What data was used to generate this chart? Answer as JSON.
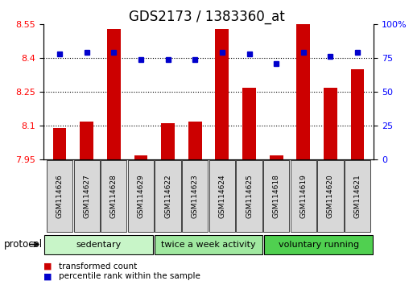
{
  "title": "GDS2173 / 1383360_at",
  "samples": [
    "GSM114626",
    "GSM114627",
    "GSM114628",
    "GSM114629",
    "GSM114622",
    "GSM114623",
    "GSM114624",
    "GSM114625",
    "GSM114618",
    "GSM114619",
    "GSM114620",
    "GSM114621"
  ],
  "transformed_count": [
    8.09,
    8.12,
    8.53,
    7.97,
    8.11,
    8.12,
    8.53,
    8.27,
    7.97,
    8.55,
    8.27,
    8.35
  ],
  "percentile_rank": [
    78,
    79,
    79,
    74,
    74,
    74,
    79,
    78,
    71,
    79,
    76,
    79
  ],
  "groups": [
    {
      "label": "sedentary",
      "start": 0,
      "end": 4,
      "color": "#c8f5c8"
    },
    {
      "label": "twice a week activity",
      "start": 4,
      "end": 8,
      "color": "#a0e8a0"
    },
    {
      "label": "voluntary running",
      "start": 8,
      "end": 12,
      "color": "#50d050"
    }
  ],
  "ylim_left": [
    7.95,
    8.55
  ],
  "ylim_right": [
    0,
    100
  ],
  "yticks_left": [
    7.95,
    8.1,
    8.25,
    8.4,
    8.55
  ],
  "yticks_right": [
    0,
    25,
    50,
    75,
    100
  ],
  "bar_color": "#cc0000",
  "dot_color": "#0000cc",
  "bar_width": 0.5,
  "background_color": "#ffffff",
  "plot_bg_color": "#ffffff",
  "title_fontsize": 12,
  "tick_fontsize": 8,
  "protocol_label": "protocol",
  "legend_items": [
    {
      "label": "transformed count",
      "color": "#cc0000"
    },
    {
      "label": "percentile rank within the sample",
      "color": "#0000cc"
    }
  ]
}
